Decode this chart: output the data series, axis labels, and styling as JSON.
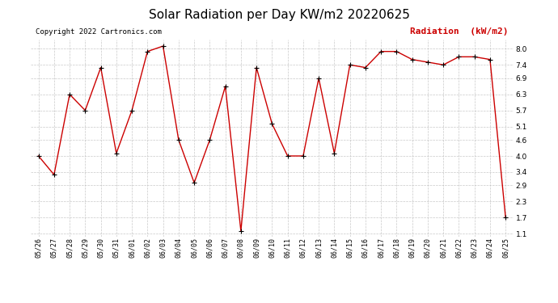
{
  "title": "Solar Radiation per Day KW/m2 20220625",
  "copyright": "Copyright 2022 Cartronics.com",
  "legend_label": "Radiation  (kW/m2)",
  "dates": [
    "05/26",
    "05/27",
    "05/28",
    "05/29",
    "05/30",
    "05/31",
    "06/01",
    "06/02",
    "06/03",
    "06/04",
    "06/05",
    "06/06",
    "06/07",
    "06/08",
    "06/09",
    "06/10",
    "06/11",
    "06/12",
    "06/13",
    "06/14",
    "06/15",
    "06/16",
    "06/17",
    "06/18",
    "06/19",
    "06/20",
    "06/21",
    "06/22",
    "06/23",
    "06/24",
    "06/25"
  ],
  "values": [
    4.0,
    3.3,
    6.3,
    5.7,
    7.3,
    4.1,
    5.7,
    7.9,
    8.1,
    4.6,
    3.0,
    4.6,
    6.6,
    1.2,
    7.3,
    5.2,
    4.0,
    4.0,
    6.9,
    4.1,
    7.4,
    7.3,
    7.9,
    7.9,
    7.6,
    7.5,
    7.4,
    7.7,
    7.7,
    7.6,
    1.7
  ],
  "line_color": "#cc0000",
  "marker_color": "#000000",
  "background_color": "#ffffff",
  "grid_color": "#bbbbbb",
  "title_fontsize": 11,
  "copyright_fontsize": 6.5,
  "legend_fontsize": 8,
  "tick_fontsize": 6,
  "ylim": [
    1.0,
    8.35
  ],
  "yticks": [
    1.1,
    1.7,
    2.3,
    2.9,
    3.4,
    4.0,
    4.6,
    5.1,
    5.7,
    6.3,
    6.9,
    7.4,
    8.0
  ],
  "copyright_color": "#000000",
  "legend_color": "#cc0000"
}
